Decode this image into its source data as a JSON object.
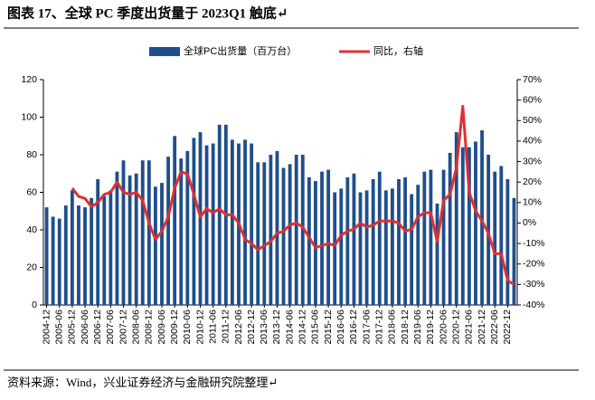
{
  "chart_data": {
    "type": "bar+line",
    "title": "图表 17、全球 PC 季度出货量于 2023Q1 触底↵",
    "source": "资料来源：Wind，兴业证券经济与金融研究院整理↵",
    "categories": [
      "2004-12",
      null,
      "2005-06",
      null,
      "2005-12",
      null,
      "2006-06",
      null,
      "2006-12",
      null,
      "2007-06",
      null,
      "2007-12",
      null,
      "2008-06",
      null,
      "2008-12",
      null,
      "2009-06",
      null,
      "2009-12",
      null,
      "2010-06",
      null,
      "2010-12",
      null,
      "2011-06",
      null,
      "2011-12",
      null,
      "2012-06",
      null,
      "2012-12",
      null,
      "2013-06",
      null,
      "2013-12",
      null,
      "2014-06",
      null,
      "2014-12",
      null,
      "2015-06",
      null,
      "2015-12",
      null,
      "2016-06",
      null,
      "2016-12",
      null,
      "2017-06",
      null,
      "2017-12",
      null,
      "2018-06",
      null,
      "2018-12",
      null,
      "2019-06",
      null,
      "2019-12",
      null,
      "2020-06",
      null,
      "2020-12",
      null,
      "2021-06",
      null,
      "2021-12",
      null,
      "2022-06",
      null,
      "2022-12",
      null
    ],
    "series": [
      {
        "name": "全球PC出货量（百万台）",
        "color": "#1f4e8c",
        "type": "bar",
        "axis": "y",
        "values": [
          52,
          47,
          46,
          53,
          61,
          53,
          52,
          57,
          67,
          58,
          61,
          71,
          77,
          69,
          70,
          77,
          77,
          63,
          65,
          79,
          90,
          78,
          82,
          89,
          92,
          85,
          86,
          96,
          96,
          88,
          86,
          88,
          86,
          76,
          76,
          80,
          82,
          73,
          75,
          80,
          80,
          68,
          66,
          71,
          72,
          60,
          62,
          68,
          70,
          60,
          61,
          67,
          71,
          61,
          62,
          67,
          68,
          59,
          64,
          71,
          72,
          54,
          72,
          81,
          92,
          84,
          84,
          87,
          93,
          80,
          71,
          74,
          67,
          57
        ]
      },
      {
        "name": "同比，右轴",
        "color": "#e03030",
        "type": "line",
        "axis": "y2",
        "values": [
          null,
          null,
          null,
          null,
          17,
          13,
          12,
          8,
          10,
          14,
          15,
          20,
          15,
          14,
          15,
          11,
          0,
          -8,
          -4,
          3,
          17,
          25,
          24,
          14,
          3,
          7,
          5,
          7,
          4,
          4,
          0,
          -8,
          -10,
          -13,
          -11,
          -9,
          -5,
          -4,
          -1,
          0,
          -2,
          -7,
          -12,
          -11,
          -10,
          -11,
          -6,
          -4,
          -3,
          0,
          -2,
          -1,
          1,
          1,
          1,
          0,
          -4,
          -3,
          3,
          5,
          5,
          -9,
          11,
          14,
          27,
          57,
          15,
          6,
          1,
          -5,
          -15,
          -15,
          -28,
          -30
        ]
      }
    ],
    "ylim": [
      0,
      120
    ],
    "yticks": [
      0,
      20,
      40,
      60,
      80,
      100,
      120
    ],
    "y2lim": [
      -40,
      70
    ],
    "y2ticks": [
      {
        "value": -40,
        "label": "-40%"
      },
      {
        "value": -30,
        "label": "-30%"
      },
      {
        "value": -20,
        "label": "-20%"
      },
      {
        "value": -10,
        "label": "-10%"
      },
      {
        "value": 0,
        "label": "0%"
      },
      {
        "value": 10,
        "label": "10%"
      },
      {
        "value": 20,
        "label": "20%"
      },
      {
        "value": 30,
        "label": "30%"
      },
      {
        "value": 40,
        "label": "40%"
      },
      {
        "value": 50,
        "label": "50%"
      },
      {
        "value": 60,
        "label": "60%"
      },
      {
        "value": 70,
        "label": "70%"
      }
    ],
    "grid": false,
    "legend": "top"
  }
}
